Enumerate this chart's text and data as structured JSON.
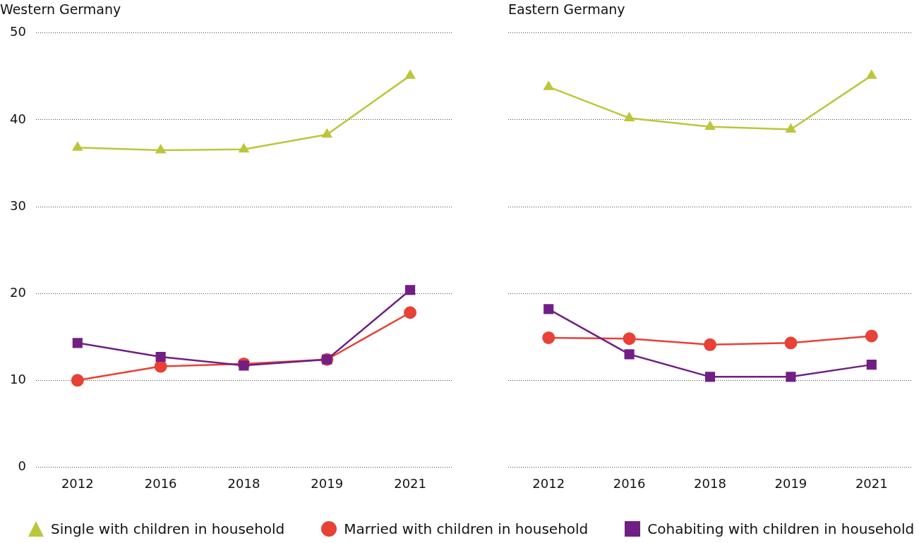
{
  "chart_data": [
    {
      "type": "line",
      "title": "Western Germany",
      "categories": [
        "2012",
        "2016",
        "2018",
        "2019",
        "2021"
      ],
      "ylim": [
        0,
        50
      ],
      "yticks": [
        0,
        10,
        20,
        30,
        40,
        50
      ],
      "grid": "y",
      "legend": "bottom",
      "line_style": "solid",
      "series": [
        {
          "name": "Single with children in household",
          "color": "#bcc63a",
          "marker": "triangle",
          "values": [
            36.8,
            36.5,
            36.6,
            38.3,
            45.1
          ]
        },
        {
          "name": "Married with children in household",
          "color": "#e84136",
          "marker": "circle",
          "values": [
            10.0,
            11.6,
            11.9,
            12.4,
            17.8
          ]
        },
        {
          "name": "Cohabiting with children in household",
          "color": "#711f85",
          "marker": "square",
          "values": [
            14.3,
            12.7,
            11.7,
            12.4,
            20.4
          ]
        }
      ]
    },
    {
      "type": "line",
      "title": "Eastern Germany",
      "categories": [
        "2012",
        "2016",
        "2018",
        "2019",
        "2021"
      ],
      "ylim": [
        0,
        50
      ],
      "yticks": [
        0,
        10,
        20,
        30,
        40,
        50
      ],
      "grid": "y",
      "legend": "bottom",
      "line_style": "solid",
      "tick_labels": "x",
      "series": [
        {
          "name": "Single with children in household",
          "color": "#bcc63a",
          "marker": "triangle",
          "values": [
            43.8,
            40.2,
            39.2,
            38.9,
            45.1
          ]
        },
        {
          "name": "Married with children in household",
          "color": "#e84136",
          "marker": "circle",
          "values": [
            14.9,
            14.8,
            14.1,
            14.3,
            15.1
          ]
        },
        {
          "name": "Cohabiting with children in household",
          "color": "#711f85",
          "marker": "square",
          "values": [
            18.2,
            13.0,
            10.4,
            10.4,
            11.8
          ]
        }
      ]
    }
  ]
}
